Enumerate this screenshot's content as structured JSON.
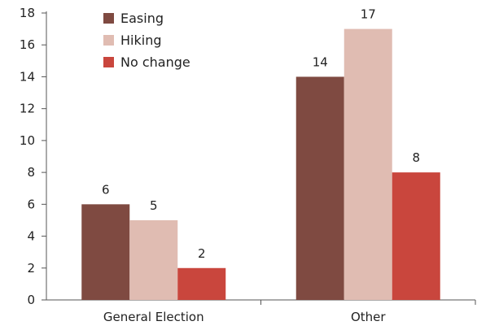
{
  "chart_data": {
    "type": "bar",
    "categories": [
      "General Election",
      "Other"
    ],
    "series": [
      {
        "name": "Easing",
        "values": [
          6,
          14
        ],
        "color": "#7f4a41"
      },
      {
        "name": "Hiking",
        "values": [
          5,
          17
        ],
        "color": "#e0bcb2"
      },
      {
        "name": "No change",
        "values": [
          2,
          8
        ],
        "color": "#c9463d"
      }
    ],
    "ylim": [
      0,
      18
    ],
    "yticks": [
      0,
      2,
      4,
      6,
      8,
      10,
      12,
      14,
      16,
      18
    ],
    "grid": false,
    "legend": "top-left",
    "data_labels": true,
    "axis_color": "#555555"
  }
}
